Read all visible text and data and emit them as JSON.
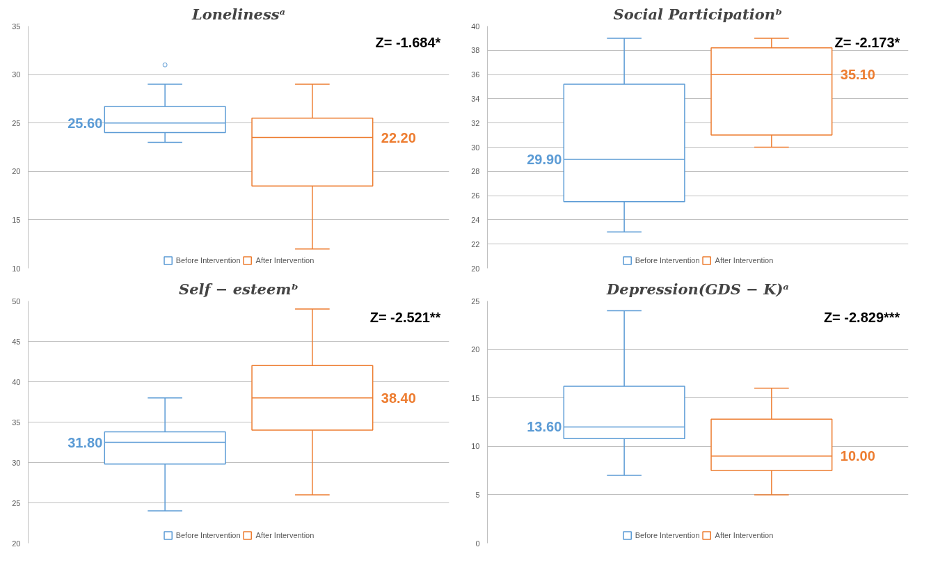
{
  "chart_data": [
    {
      "type": "box",
      "title": "Lonelinessᵃ",
      "categories": [
        null
      ],
      "ylim": [
        10,
        35
      ],
      "yticks": [
        10,
        15,
        20,
        25,
        30,
        35
      ],
      "grid": "y",
      "legend": "bottom",
      "tick_labels": "y",
      "annotations": [
        "Z= -1.684*",
        "25.60",
        "22.20"
      ],
      "series": [
        {
          "name": "Before Intervention",
          "color": "#5b9bd5",
          "boxes": [
            {
              "low": 23,
              "q1": 24,
              "median": 25,
              "q3": 26.7,
              "high": 29,
              "outliers": [
                31
              ]
            }
          ]
        },
        {
          "name": "After Intervention",
          "color": "#ed7d31",
          "boxes": [
            {
              "low": 12,
              "q1": 18.5,
              "median": 23.5,
              "q3": 25.5,
              "high": 29
            }
          ]
        }
      ]
    },
    {
      "type": "box",
      "title": "Social Participationᵇ",
      "categories": [
        null
      ],
      "ylim": [
        20,
        40
      ],
      "yticks": [
        20,
        22,
        24,
        26,
        28,
        30,
        32,
        34,
        36,
        38,
        40
      ],
      "grid": "y",
      "legend": "bottom",
      "tick_labels": "y",
      "annotations": [
        "Z= -2.173*",
        "29.90",
        "35.10"
      ],
      "series": [
        {
          "name": "Before Intervention",
          "color": "#5b9bd5",
          "boxes": [
            {
              "low": 23,
              "q1": 25.5,
              "median": 29,
              "q3": 35.2,
              "high": 39
            }
          ]
        },
        {
          "name": "After Intervention",
          "color": "#ed7d31",
          "boxes": [
            {
              "low": 30,
              "q1": 31,
              "median": 36,
              "q3": 38.2,
              "high": 39
            }
          ]
        }
      ]
    },
    {
      "type": "box",
      "title": "Self − esteemᵇ",
      "categories": [
        null
      ],
      "ylim": [
        20,
        50
      ],
      "yticks": [
        20,
        25,
        30,
        35,
        40,
        45,
        50
      ],
      "grid": "y",
      "legend": "bottom",
      "tick_labels": "y",
      "annotations": [
        "Z= -2.521**",
        "31.80",
        "38.40"
      ],
      "series": [
        {
          "name": "Before Intervention",
          "color": "#5b9bd5",
          "boxes": [
            {
              "low": 24,
              "q1": 29.8,
              "median": 32.5,
              "q3": 33.8,
              "high": 38
            }
          ]
        },
        {
          "name": "After Intervention",
          "color": "#ed7d31",
          "boxes": [
            {
              "low": 26,
              "q1": 34,
              "median": 38,
              "q3": 42,
              "high": 49
            }
          ]
        }
      ]
    },
    {
      "type": "box",
      "title": "Depression(GDS − K)ᵃ",
      "categories": [
        null
      ],
      "ylim": [
        0,
        25
      ],
      "yticks": [
        0,
        5,
        10,
        15,
        20,
        25
      ],
      "grid": "y",
      "legend": "bottom",
      "tick_labels": "y",
      "annotations": [
        "Z= -2.829***",
        "13.60",
        "10.00"
      ],
      "series": [
        {
          "name": "Before Intervention",
          "color": "#5b9bd5",
          "boxes": [
            {
              "low": 7,
              "q1": 10.8,
              "median": 12,
              "q3": 16.2,
              "high": 24
            }
          ]
        },
        {
          "name": "After Intervention",
          "color": "#ed7d31",
          "boxes": [
            {
              "low": 5,
              "q1": 7.5,
              "median": 9,
              "q3": 12.8,
              "high": 16
            }
          ]
        }
      ]
    }
  ]
}
